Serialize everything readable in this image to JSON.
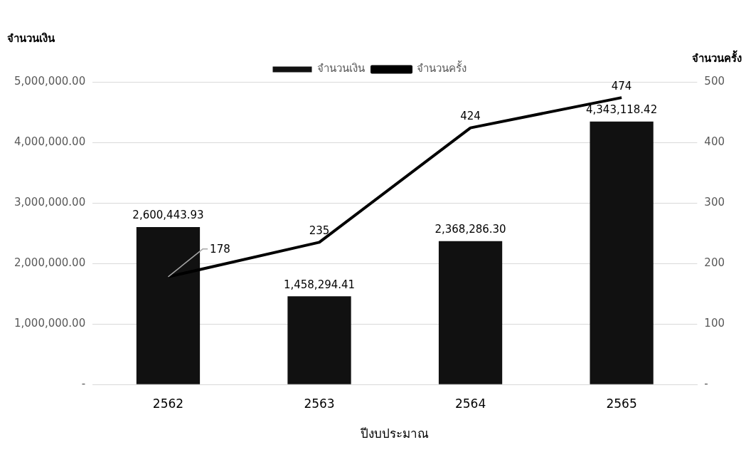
{
  "chart_data": {
    "type": "bar",
    "xlabel": "ปีงบประมาณ",
    "ylabel": "จำนวนเงิน",
    "y2label": "จำนวนครั้ง",
    "categories": [
      "2562",
      "2563",
      "2564",
      "2565"
    ],
    "series": [
      {
        "name": "จำนวนเงิน",
        "color": "#111111",
        "values": [
          2600443.93,
          1458294.41,
          2368286.3,
          4343118.42
        ],
        "value_labels": [
          "2,600,443.93",
          "1,458,294.41",
          "2,368,286.30",
          "4,343,118.42"
        ]
      },
      {
        "name": "จำนวนครั้ง",
        "type": "line",
        "axis": "y2",
        "color": "#000000",
        "values": [
          178,
          235,
          424,
          474
        ],
        "value_labels": [
          "178",
          "235",
          "424",
          "474"
        ]
      }
    ],
    "ylim": [
      0,
      5000000
    ],
    "yticks": [
      {
        "value": 0,
        "label": "-"
      },
      {
        "value": 1000000,
        "label": "1,000,000.00"
      },
      {
        "value": 2000000,
        "label": "2,000,000.00"
      },
      {
        "value": 3000000,
        "label": "3,000,000.00"
      },
      {
        "value": 4000000,
        "label": "4,000,000.00"
      },
      {
        "value": 5000000,
        "label": "5,000,000.00"
      }
    ],
    "y2lim": [
      0,
      500
    ],
    "y2ticks": [
      {
        "value": 0,
        "label": "-"
      },
      100,
      200,
      300,
      400,
      500
    ],
    "grid": "y",
    "legend": "top",
    "marker": "none",
    "line_style": "solid"
  }
}
